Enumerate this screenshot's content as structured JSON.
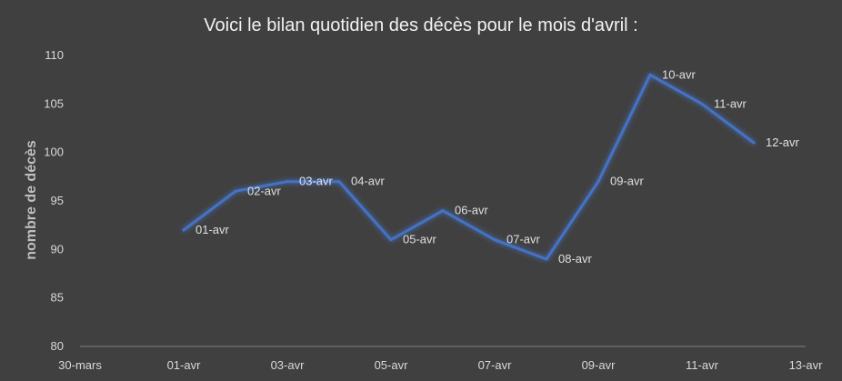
{
  "chart_data": {
    "type": "line",
    "title": "Voici le bilan quotidien des décès pour le mois d'avril :",
    "xlabel": "",
    "ylabel": "nombre de décès",
    "ylim": [
      80,
      110
    ],
    "yticks": [
      80,
      85,
      90,
      95,
      100,
      105,
      110
    ],
    "xlim_days": [
      0,
      14
    ],
    "xticks": [
      {
        "day": 0,
        "label": "30-mars"
      },
      {
        "day": 2,
        "label": "01-avr"
      },
      {
        "day": 4,
        "label": "03-avr"
      },
      {
        "day": 6,
        "label": "05-avr"
      },
      {
        "day": 8,
        "label": "07-avr"
      },
      {
        "day": 10,
        "label": "09-avr"
      },
      {
        "day": 12,
        "label": "11-avr"
      },
      {
        "day": 14,
        "label": "13-avr"
      }
    ],
    "series": [
      {
        "color": "#4472c4",
        "points": [
          {
            "day": 2,
            "label": "01-avr",
            "value": 92
          },
          {
            "day": 3,
            "label": "02-avr",
            "value": 96
          },
          {
            "day": 4,
            "label": "03-avr",
            "value": 97
          },
          {
            "day": 5,
            "label": "04-avr",
            "value": 97
          },
          {
            "day": 6,
            "label": "05-avr",
            "value": 91
          },
          {
            "day": 7,
            "label": "06-avr",
            "value": 94
          },
          {
            "day": 8,
            "label": "07-avr",
            "value": 91
          },
          {
            "day": 9,
            "label": "08-avr",
            "value": 89
          },
          {
            "day": 10,
            "label": "09-avr",
            "value": 97
          },
          {
            "day": 11,
            "label": "10-avr",
            "value": 108
          },
          {
            "day": 12,
            "label": "11-avr",
            "value": 105
          },
          {
            "day": 13,
            "label": "12-avr",
            "value": 101
          }
        ]
      }
    ],
    "grid": false,
    "legend": "none"
  }
}
